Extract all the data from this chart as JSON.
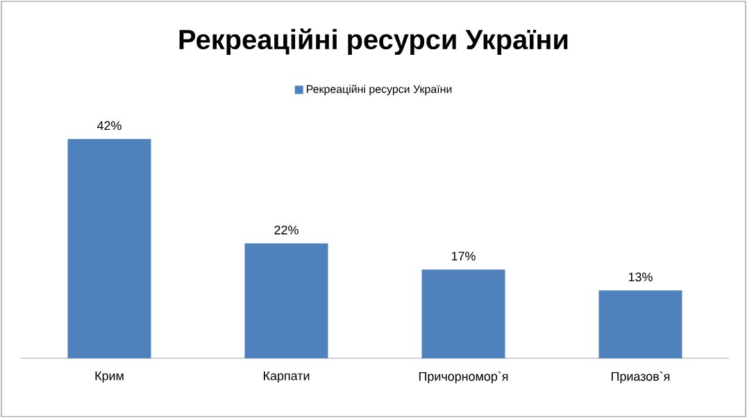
{
  "chart_data": {
    "type": "bar",
    "title": "Рекреаційні ресурси України",
    "categories": [
      "Крим",
      "Карпати",
      "Причорномор`я",
      "Приазов`я"
    ],
    "series": [
      {
        "name": "Рекреаційні ресурси України",
        "color": "#4f81bd",
        "values": [
          42,
          22,
          17,
          13
        ],
        "value_labels": [
          "42%",
          "22%",
          "17%",
          "13%"
        ]
      }
    ],
    "legend": "top"
  }
}
